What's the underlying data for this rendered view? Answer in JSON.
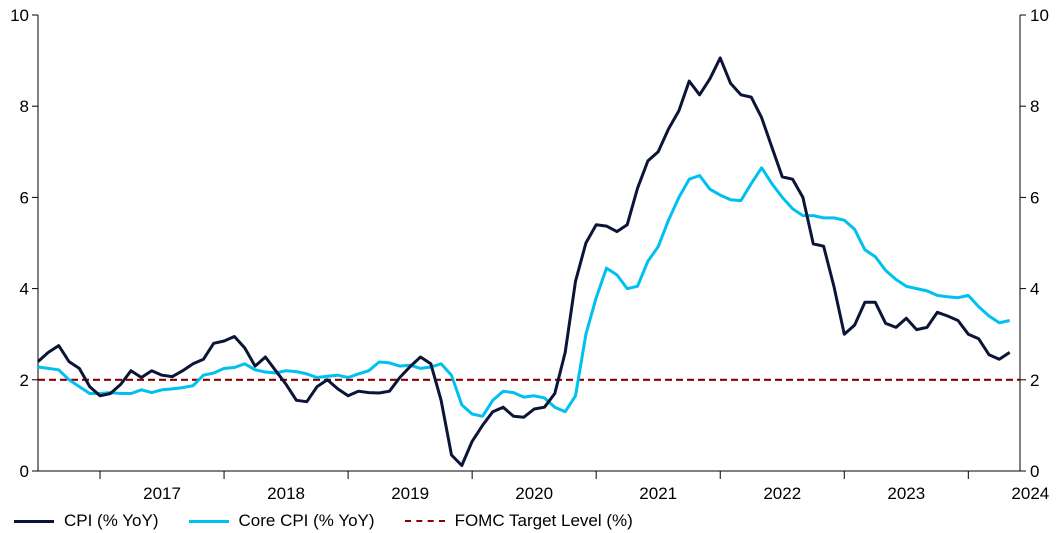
{
  "chart_data": {
    "type": "line",
    "y_ticks": [
      "0",
      "2",
      "4",
      "6",
      "8",
      "10"
    ],
    "ylim": [
      0,
      10
    ],
    "x_tick_labels": [
      "2017",
      "2018",
      "2019",
      "2020",
      "2021",
      "2022",
      "2023",
      "2024"
    ],
    "x_tick_years": [
      2017,
      2018,
      2019,
      2020,
      2021,
      2022,
      2023,
      2024
    ],
    "xlim": [
      "2016-07",
      "2024-06"
    ],
    "target_level": 2,
    "colors": {
      "cpi": "#0b1537",
      "core": "#00c0f0",
      "target": "#8b0000",
      "axis": "#000000"
    },
    "series": [
      {
        "name": "CPI (% YoY)",
        "start": "2016-07",
        "values": [
          2.4,
          2.6,
          2.75,
          2.4,
          2.25,
          1.85,
          1.65,
          1.7,
          1.9,
          2.2,
          2.05,
          2.2,
          2.1,
          2.07,
          2.2,
          2.35,
          2.45,
          2.8,
          2.85,
          2.95,
          2.7,
          2.3,
          2.5,
          2.2,
          1.9,
          1.55,
          1.52,
          1.85,
          2.0,
          1.8,
          1.65,
          1.75,
          1.72,
          1.71,
          1.75,
          2.05,
          2.29,
          2.5,
          2.35,
          1.55,
          0.35,
          0.12,
          0.65,
          1.0,
          1.3,
          1.4,
          1.2,
          1.18,
          1.36,
          1.4,
          1.7,
          2.6,
          4.16,
          5.0,
          5.4,
          5.37,
          5.25,
          5.4,
          6.2,
          6.8,
          7.0,
          7.5,
          7.9,
          8.55,
          8.25,
          8.6,
          9.06,
          8.5,
          8.25,
          8.2,
          7.75,
          7.1,
          6.45,
          6.4,
          6.0,
          4.98,
          4.93,
          4.05,
          3.0,
          3.2,
          3.7,
          3.7,
          3.24,
          3.15,
          3.35,
          3.1,
          3.15,
          3.48,
          3.4,
          3.3,
          3.0,
          2.9,
          2.55,
          2.45,
          2.6
        ]
      },
      {
        "name": "Core CPI (% YoY)",
        "start": "2016-07",
        "values": [
          2.28,
          2.25,
          2.22,
          2.0,
          1.85,
          1.7,
          1.7,
          1.72,
          1.7,
          1.7,
          1.78,
          1.72,
          1.78,
          1.8,
          1.83,
          1.87,
          2.1,
          2.15,
          2.25,
          2.27,
          2.35,
          2.22,
          2.17,
          2.15,
          2.2,
          2.18,
          2.13,
          2.05,
          2.08,
          2.1,
          2.05,
          2.13,
          2.2,
          2.39,
          2.37,
          2.3,
          2.32,
          2.25,
          2.28,
          2.35,
          2.1,
          1.45,
          1.25,
          1.2,
          1.55,
          1.75,
          1.72,
          1.62,
          1.65,
          1.6,
          1.4,
          1.3,
          1.65,
          3.0,
          3.8,
          4.45,
          4.3,
          4.0,
          4.05,
          4.6,
          4.92,
          5.5,
          6.0,
          6.4,
          6.48,
          6.18,
          6.05,
          5.95,
          5.93,
          6.3,
          6.65,
          6.3,
          6.0,
          5.75,
          5.6,
          5.6,
          5.55,
          5.55,
          5.5,
          5.3,
          4.85,
          4.7,
          4.4,
          4.2,
          4.05,
          4.0,
          3.95,
          3.85,
          3.82,
          3.8,
          3.85,
          3.6,
          3.4,
          3.25,
          3.3
        ]
      }
    ],
    "legend": [
      {
        "label": "CPI (% YoY)"
      },
      {
        "label": "Core CPI (% YoY)"
      },
      {
        "label": "FOMC Target Level (%)"
      }
    ],
    "legend_placement": "bottom-left",
    "grid": false
  }
}
